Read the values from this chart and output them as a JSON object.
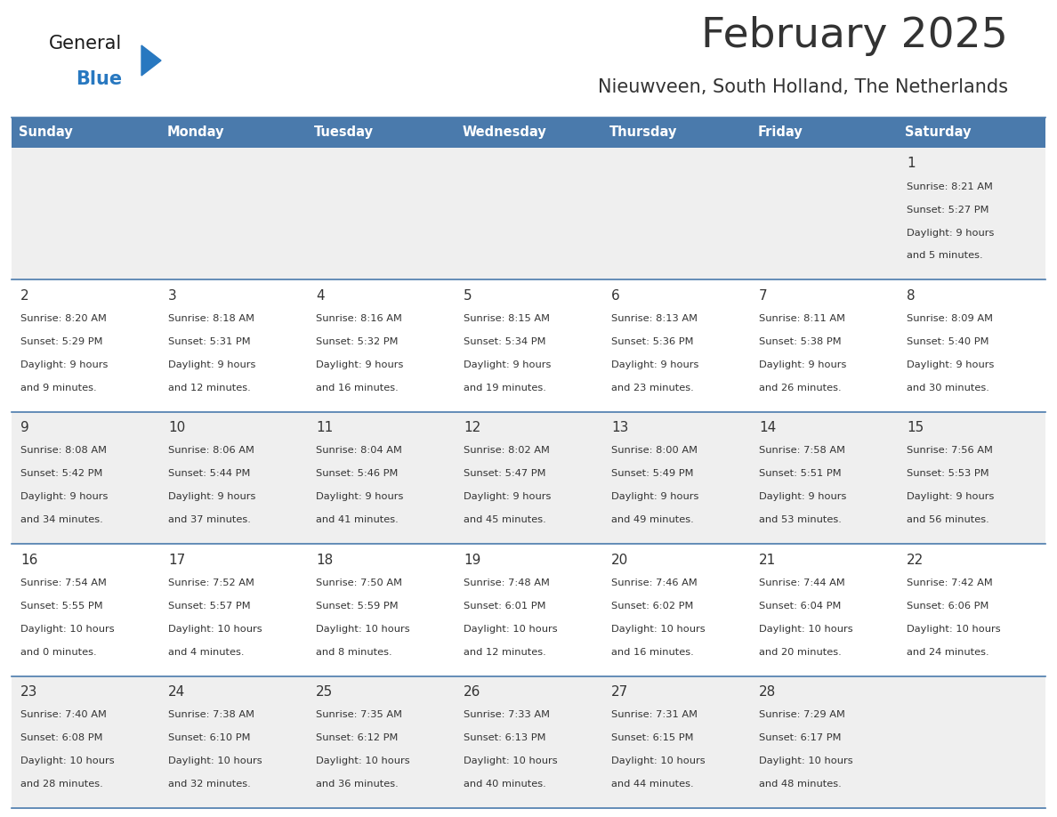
{
  "title": "February 2025",
  "subtitle": "Nieuwveen, South Holland, The Netherlands",
  "header_color": "#4a7aac",
  "header_text_color": "#ffffff",
  "days_of_week": [
    "Sunday",
    "Monday",
    "Tuesday",
    "Wednesday",
    "Thursday",
    "Friday",
    "Saturday"
  ],
  "bg_color": "#ffffff",
  "cell_bg_even": "#efefef",
  "cell_bg_odd": "#ffffff",
  "separator_color": "#4a7aac",
  "text_color": "#333333",
  "logo_general_color": "#1a1a1a",
  "logo_blue_color": "#2878c0",
  "calendar": [
    [
      null,
      null,
      null,
      null,
      null,
      null,
      {
        "day": 1,
        "sunrise": "8:21 AM",
        "sunset": "5:27 PM",
        "daylight_line1": "Daylight: 9 hours",
        "daylight_line2": "and 5 minutes."
      }
    ],
    [
      {
        "day": 2,
        "sunrise": "8:20 AM",
        "sunset": "5:29 PM",
        "daylight_line1": "Daylight: 9 hours",
        "daylight_line2": "and 9 minutes."
      },
      {
        "day": 3,
        "sunrise": "8:18 AM",
        "sunset": "5:31 PM",
        "daylight_line1": "Daylight: 9 hours",
        "daylight_line2": "and 12 minutes."
      },
      {
        "day": 4,
        "sunrise": "8:16 AM",
        "sunset": "5:32 PM",
        "daylight_line1": "Daylight: 9 hours",
        "daylight_line2": "and 16 minutes."
      },
      {
        "day": 5,
        "sunrise": "8:15 AM",
        "sunset": "5:34 PM",
        "daylight_line1": "Daylight: 9 hours",
        "daylight_line2": "and 19 minutes."
      },
      {
        "day": 6,
        "sunrise": "8:13 AM",
        "sunset": "5:36 PM",
        "daylight_line1": "Daylight: 9 hours",
        "daylight_line2": "and 23 minutes."
      },
      {
        "day": 7,
        "sunrise": "8:11 AM",
        "sunset": "5:38 PM",
        "daylight_line1": "Daylight: 9 hours",
        "daylight_line2": "and 26 minutes."
      },
      {
        "day": 8,
        "sunrise": "8:09 AM",
        "sunset": "5:40 PM",
        "daylight_line1": "Daylight: 9 hours",
        "daylight_line2": "and 30 minutes."
      }
    ],
    [
      {
        "day": 9,
        "sunrise": "8:08 AM",
        "sunset": "5:42 PM",
        "daylight_line1": "Daylight: 9 hours",
        "daylight_line2": "and 34 minutes."
      },
      {
        "day": 10,
        "sunrise": "8:06 AM",
        "sunset": "5:44 PM",
        "daylight_line1": "Daylight: 9 hours",
        "daylight_line2": "and 37 minutes."
      },
      {
        "day": 11,
        "sunrise": "8:04 AM",
        "sunset": "5:46 PM",
        "daylight_line1": "Daylight: 9 hours",
        "daylight_line2": "and 41 minutes."
      },
      {
        "day": 12,
        "sunrise": "8:02 AM",
        "sunset": "5:47 PM",
        "daylight_line1": "Daylight: 9 hours",
        "daylight_line2": "and 45 minutes."
      },
      {
        "day": 13,
        "sunrise": "8:00 AM",
        "sunset": "5:49 PM",
        "daylight_line1": "Daylight: 9 hours",
        "daylight_line2": "and 49 minutes."
      },
      {
        "day": 14,
        "sunrise": "7:58 AM",
        "sunset": "5:51 PM",
        "daylight_line1": "Daylight: 9 hours",
        "daylight_line2": "and 53 minutes."
      },
      {
        "day": 15,
        "sunrise": "7:56 AM",
        "sunset": "5:53 PM",
        "daylight_line1": "Daylight: 9 hours",
        "daylight_line2": "and 56 minutes."
      }
    ],
    [
      {
        "day": 16,
        "sunrise": "7:54 AM",
        "sunset": "5:55 PM",
        "daylight_line1": "Daylight: 10 hours",
        "daylight_line2": "and 0 minutes."
      },
      {
        "day": 17,
        "sunrise": "7:52 AM",
        "sunset": "5:57 PM",
        "daylight_line1": "Daylight: 10 hours",
        "daylight_line2": "and 4 minutes."
      },
      {
        "day": 18,
        "sunrise": "7:50 AM",
        "sunset": "5:59 PM",
        "daylight_line1": "Daylight: 10 hours",
        "daylight_line2": "and 8 minutes."
      },
      {
        "day": 19,
        "sunrise": "7:48 AM",
        "sunset": "6:01 PM",
        "daylight_line1": "Daylight: 10 hours",
        "daylight_line2": "and 12 minutes."
      },
      {
        "day": 20,
        "sunrise": "7:46 AM",
        "sunset": "6:02 PM",
        "daylight_line1": "Daylight: 10 hours",
        "daylight_line2": "and 16 minutes."
      },
      {
        "day": 21,
        "sunrise": "7:44 AM",
        "sunset": "6:04 PM",
        "daylight_line1": "Daylight: 10 hours",
        "daylight_line2": "and 20 minutes."
      },
      {
        "day": 22,
        "sunrise": "7:42 AM",
        "sunset": "6:06 PM",
        "daylight_line1": "Daylight: 10 hours",
        "daylight_line2": "and 24 minutes."
      }
    ],
    [
      {
        "day": 23,
        "sunrise": "7:40 AM",
        "sunset": "6:08 PM",
        "daylight_line1": "Daylight: 10 hours",
        "daylight_line2": "and 28 minutes."
      },
      {
        "day": 24,
        "sunrise": "7:38 AM",
        "sunset": "6:10 PM",
        "daylight_line1": "Daylight: 10 hours",
        "daylight_line2": "and 32 minutes."
      },
      {
        "day": 25,
        "sunrise": "7:35 AM",
        "sunset": "6:12 PM",
        "daylight_line1": "Daylight: 10 hours",
        "daylight_line2": "and 36 minutes."
      },
      {
        "day": 26,
        "sunrise": "7:33 AM",
        "sunset": "6:13 PM",
        "daylight_line1": "Daylight: 10 hours",
        "daylight_line2": "and 40 minutes."
      },
      {
        "day": 27,
        "sunrise": "7:31 AM",
        "sunset": "6:15 PM",
        "daylight_line1": "Daylight: 10 hours",
        "daylight_line2": "and 44 minutes."
      },
      {
        "day": 28,
        "sunrise": "7:29 AM",
        "sunset": "6:17 PM",
        "daylight_line1": "Daylight: 10 hours",
        "daylight_line2": "and 48 minutes."
      },
      null
    ]
  ]
}
